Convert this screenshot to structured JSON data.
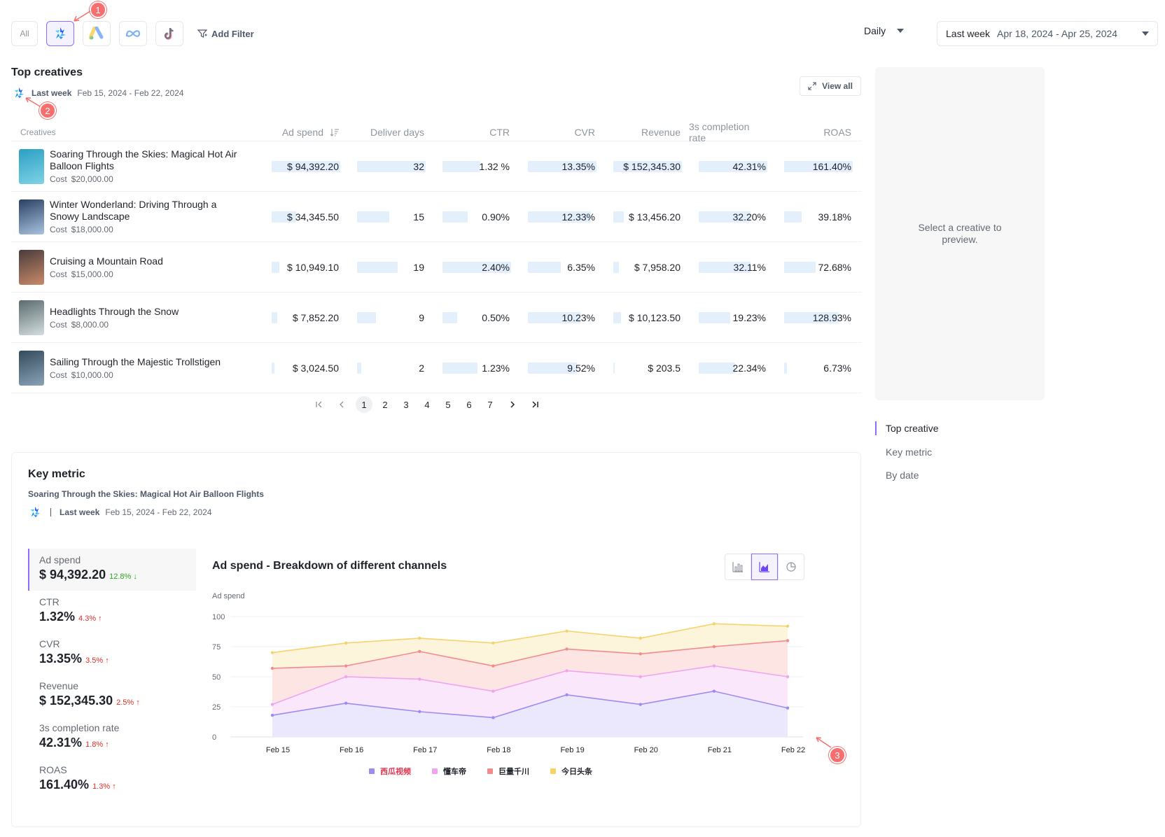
{
  "filters": {
    "all_label": "All",
    "platforms": [
      {
        "icon": "ocean-engine-icon",
        "active": true
      },
      {
        "icon": "google-ads-icon",
        "active": false
      },
      {
        "icon": "meta-icon",
        "active": false
      },
      {
        "icon": "tiktok-icon",
        "active": false
      }
    ],
    "add_filter_label": "Add Filter"
  },
  "granularity": {
    "value": "Daily"
  },
  "date_range": {
    "label": "Last week",
    "value": "Apr 18, 2024 - Apr 25, 2024"
  },
  "annotations": [
    "1",
    "2",
    "3"
  ],
  "top_creatives": {
    "title": "Top creatives",
    "period": "Last week",
    "dates": "Feb 15, 2024 - Feb 22, 2024",
    "view_all_label": "View all",
    "columns": [
      "Creatives",
      "Ad spend",
      "Deliver days",
      "CTR",
      "CVR",
      "Revenue",
      "3s completion rate",
      "ROAS"
    ],
    "cost_label": "Cost",
    "rows": [
      {
        "name": "Soaring Through the Skies: Magical Hot Air Balloon Flights",
        "cost": "$20,000.00",
        "cells": [
          "$ 94,392.20",
          "32",
          "1.32 %",
          "13.35%",
          "$ 152,345.30",
          "42.31%",
          "161.40%"
        ],
        "bars": [
          1.0,
          1.0,
          0.55,
          1.0,
          1.0,
          1.0,
          1.0
        ],
        "thumb": [
          "#2b9fc4",
          "#7fd3e6"
        ]
      },
      {
        "name": "Winter Wonderland: Driving Through a Snowy Landscape",
        "cost": "$18,000.00",
        "cells": [
          "$ 34,345.50",
          "15",
          "0.90%",
          "12.33%",
          "$ 13,456.20",
          "32.20%",
          "39.18%"
        ],
        "bars": [
          0.36,
          0.47,
          0.37,
          0.92,
          0.15,
          0.76,
          0.26
        ],
        "thumb": [
          "#2b3f63",
          "#a8c4e0"
        ]
      },
      {
        "name": "Cruising a Mountain Road",
        "cost": "$15,000.00",
        "cells": [
          "$ 10,949.10",
          "19",
          "2.40%",
          "6.35%",
          "$ 7,958.20",
          "32.11%",
          "72.68%"
        ],
        "bars": [
          0.11,
          0.59,
          1.0,
          0.48,
          0.08,
          0.76,
          0.46
        ],
        "thumb": [
          "#4a3b3b",
          "#c98a6a"
        ]
      },
      {
        "name": "Headlights Through the Snow",
        "cost": "$8,000.00",
        "cells": [
          "$ 7,852.20",
          "9",
          "0.50%",
          "10.23%",
          "$ 10,123.50",
          "19.23%",
          "128.93%"
        ],
        "bars": [
          0.08,
          0.28,
          0.21,
          0.77,
          0.11,
          0.46,
          0.8
        ],
        "thumb": [
          "#5a6b6e",
          "#d5dee0"
        ]
      },
      {
        "name": "Sailing Through the Majestic Trollstigen",
        "cost": "$10,000.00",
        "cells": [
          "$ 3,024.50",
          "2",
          "1.23%",
          "9.52%",
          "$ 203.5",
          "22.34%",
          "6.73%"
        ],
        "bars": [
          0.04,
          0.06,
          0.51,
          0.71,
          0.01,
          0.53,
          0.04
        ],
        "thumb": [
          "#344a5c",
          "#8aa3b8"
        ]
      }
    ]
  },
  "pagination": {
    "pages": [
      "1",
      "2",
      "3",
      "4",
      "5",
      "6",
      "7"
    ],
    "current": "1"
  },
  "preview": {
    "placeholder": "Select a creative to preview."
  },
  "anchor_nav": [
    {
      "label": "Top creative",
      "active": true
    },
    {
      "label": "Key metric",
      "active": false
    },
    {
      "label": "By date",
      "active": false
    }
  ],
  "key_metric": {
    "title": "Key metric",
    "creative": "Soaring Through the Skies: Magical Hot Air Balloon Flights",
    "period": "Last week",
    "dates": "Feb 15, 2024 - Feb 22, 2024",
    "metrics": [
      {
        "label": "Ad spend",
        "value": "$ 94,392.20",
        "change": "12.8%",
        "direction": "down",
        "active": true
      },
      {
        "label": "CTR",
        "value": "1.32%",
        "change": "4.3%",
        "direction": "up",
        "active": false
      },
      {
        "label": "CVR",
        "value": "13.35%",
        "change": "3.5%",
        "direction": "up",
        "active": false
      },
      {
        "label": "Revenue",
        "value": "$ 152,345.30",
        "change": "2.5%",
        "direction": "up",
        "active": false
      },
      {
        "label": "3s completion rate",
        "value": "42.31%",
        "change": "1.8%",
        "direction": "up",
        "active": false
      },
      {
        "label": "ROAS",
        "value": "161.40%",
        "change": "1.3%",
        "direction": "up",
        "active": false
      }
    ],
    "chart_types": [
      {
        "icon": "bar-chart-icon",
        "active": false
      },
      {
        "icon": "area-chart-icon",
        "active": true
      },
      {
        "icon": "pie-chart-icon",
        "active": false
      }
    ]
  },
  "chart_data": {
    "type": "area",
    "stacked": true,
    "title": "Ad spend - Breakdown of different channels",
    "ylabel": "Ad spend",
    "xlabel": "",
    "x": [
      "Feb 15",
      "Feb 16",
      "Feb 17",
      "Feb 18",
      "Feb 19",
      "Feb 20",
      "Feb 21",
      "Feb 22"
    ],
    "yticks": [
      0,
      25,
      50,
      75,
      100
    ],
    "ylim": [
      0,
      100
    ],
    "grid": true,
    "legend_position": "bottom",
    "series": [
      {
        "name": "西瓜视频",
        "color": "#9b8cf0",
        "fill": "#ebe7fc",
        "values": [
          18,
          28,
          21,
          16,
          35,
          27,
          38,
          24
        ]
      },
      {
        "name": "懂车帝",
        "color": "#f0a3ef",
        "fill": "#fbe7fb",
        "values": [
          27,
          50,
          48,
          38,
          55,
          50,
          59,
          50
        ]
      },
      {
        "name": "巨量千川",
        "color": "#f28b8b",
        "fill": "#fde5e3",
        "values": [
          57,
          59,
          71,
          59,
          73,
          69,
          75,
          80
        ]
      },
      {
        "name": "今日头条",
        "color": "#f5d36b",
        "fill": "#fdf4dc",
        "values": [
          70,
          78,
          82,
          78,
          88,
          82,
          94,
          92
        ]
      }
    ]
  }
}
